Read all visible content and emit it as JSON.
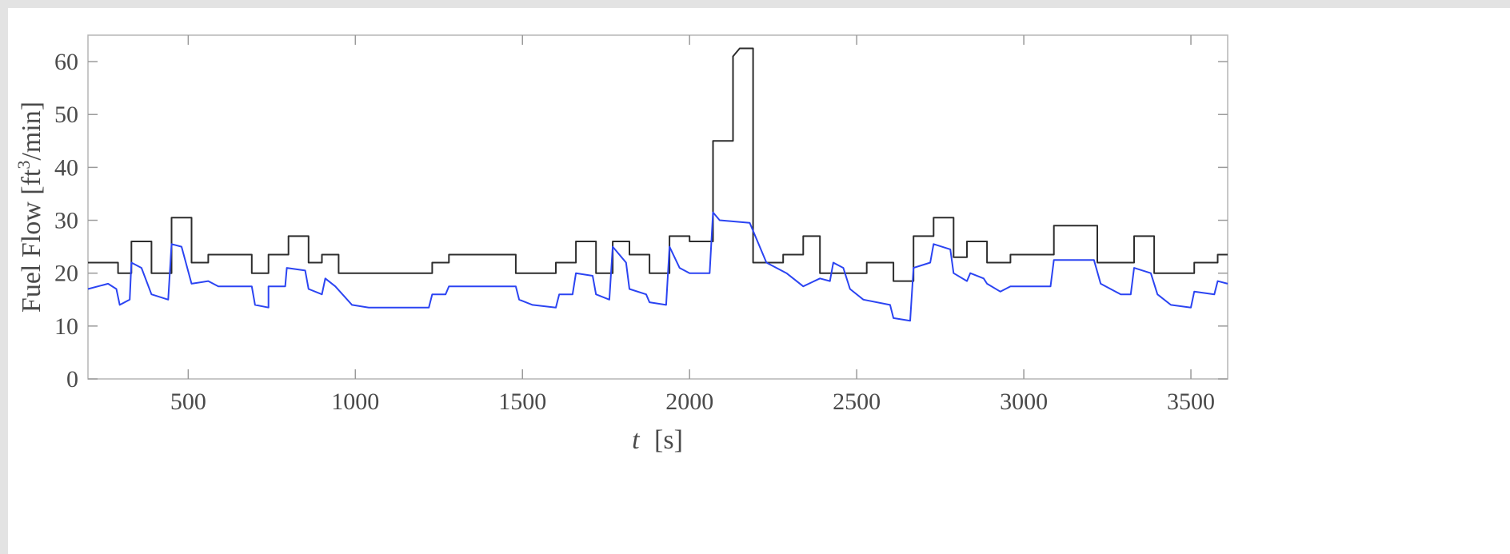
{
  "chart_data": {
    "type": "line",
    "xlabel_var": "t",
    "xlabel_unit": "[s]",
    "ylabel_main": "Fuel Flow [ft",
    "ylabel_sup": "3",
    "ylabel_tail": "/min]",
    "xlim": [
      200,
      3610
    ],
    "ylim": [
      0,
      65
    ],
    "xticks": [
      500,
      1000,
      1500,
      2000,
      2500,
      3000,
      3500
    ],
    "yticks": [
      0,
      10,
      20,
      30,
      40,
      50,
      60
    ],
    "grid": false,
    "legend": "none",
    "series": [
      {
        "color": "#2d2d2d",
        "points": [
          [
            200,
            22
          ],
          [
            290,
            22
          ],
          [
            290,
            20
          ],
          [
            330,
            20
          ],
          [
            330,
            26
          ],
          [
            390,
            26
          ],
          [
            390,
            20
          ],
          [
            450,
            20
          ],
          [
            450,
            30.5
          ],
          [
            510,
            30.5
          ],
          [
            510,
            22
          ],
          [
            560,
            22
          ],
          [
            560,
            23.5
          ],
          [
            690,
            23.5
          ],
          [
            690,
            20
          ],
          [
            740,
            20
          ],
          [
            740,
            23.5
          ],
          [
            800,
            23.5
          ],
          [
            800,
            27
          ],
          [
            860,
            27
          ],
          [
            860,
            22
          ],
          [
            900,
            22
          ],
          [
            900,
            23.5
          ],
          [
            950,
            23.5
          ],
          [
            950,
            20
          ],
          [
            1230,
            20
          ],
          [
            1230,
            22
          ],
          [
            1280,
            22
          ],
          [
            1280,
            23.5
          ],
          [
            1480,
            23.5
          ],
          [
            1480,
            20
          ],
          [
            1600,
            20
          ],
          [
            1600,
            22
          ],
          [
            1660,
            22
          ],
          [
            1660,
            26
          ],
          [
            1720,
            26
          ],
          [
            1720,
            20
          ],
          [
            1770,
            20
          ],
          [
            1770,
            26
          ],
          [
            1820,
            26
          ],
          [
            1820,
            23.5
          ],
          [
            1880,
            23.5
          ],
          [
            1880,
            20
          ],
          [
            1940,
            20
          ],
          [
            1940,
            27
          ],
          [
            2000,
            27
          ],
          [
            2000,
            26
          ],
          [
            2070,
            26
          ],
          [
            2070,
            45
          ],
          [
            2130,
            45
          ],
          [
            2130,
            61
          ],
          [
            2150,
            62.5
          ],
          [
            2190,
            62.5
          ],
          [
            2190,
            22
          ],
          [
            2280,
            22
          ],
          [
            2280,
            23.5
          ],
          [
            2340,
            23.5
          ],
          [
            2340,
            27
          ],
          [
            2390,
            27
          ],
          [
            2390,
            20
          ],
          [
            2530,
            20
          ],
          [
            2530,
            22
          ],
          [
            2610,
            22
          ],
          [
            2610,
            18.5
          ],
          [
            2670,
            18.5
          ],
          [
            2670,
            27
          ],
          [
            2730,
            27
          ],
          [
            2730,
            30.5
          ],
          [
            2790,
            30.5
          ],
          [
            2790,
            23
          ],
          [
            2830,
            23
          ],
          [
            2830,
            26
          ],
          [
            2890,
            26
          ],
          [
            2890,
            22
          ],
          [
            2960,
            22
          ],
          [
            2960,
            23.5
          ],
          [
            3090,
            23.5
          ],
          [
            3090,
            29
          ],
          [
            3220,
            29
          ],
          [
            3220,
            22
          ],
          [
            3330,
            22
          ],
          [
            3330,
            27
          ],
          [
            3390,
            27
          ],
          [
            3390,
            20
          ],
          [
            3510,
            20
          ],
          [
            3510,
            22
          ],
          [
            3580,
            22
          ],
          [
            3580,
            23.5
          ],
          [
            3610,
            23.5
          ]
        ]
      },
      {
        "color": "#2b44f2",
        "points": [
          [
            200,
            17
          ],
          [
            260,
            18
          ],
          [
            285,
            17
          ],
          [
            295,
            14
          ],
          [
            325,
            15
          ],
          [
            330,
            22
          ],
          [
            360,
            21
          ],
          [
            390,
            16
          ],
          [
            440,
            15
          ],
          [
            450,
            25.5
          ],
          [
            480,
            25
          ],
          [
            510,
            18
          ],
          [
            560,
            18.5
          ],
          [
            590,
            17.5
          ],
          [
            690,
            17.5
          ],
          [
            700,
            14
          ],
          [
            740,
            13.5
          ],
          [
            740,
            17.5
          ],
          [
            790,
            17.5
          ],
          [
            795,
            21
          ],
          [
            850,
            20.5
          ],
          [
            860,
            17
          ],
          [
            900,
            16
          ],
          [
            910,
            19
          ],
          [
            940,
            17.5
          ],
          [
            990,
            14
          ],
          [
            1040,
            13.5
          ],
          [
            1220,
            13.5
          ],
          [
            1230,
            16
          ],
          [
            1270,
            16
          ],
          [
            1280,
            17.5
          ],
          [
            1480,
            17.5
          ],
          [
            1490,
            15
          ],
          [
            1530,
            14
          ],
          [
            1600,
            13.5
          ],
          [
            1610,
            16
          ],
          [
            1650,
            16
          ],
          [
            1660,
            20
          ],
          [
            1710,
            19.5
          ],
          [
            1720,
            16
          ],
          [
            1760,
            15
          ],
          [
            1770,
            25
          ],
          [
            1810,
            22
          ],
          [
            1820,
            17
          ],
          [
            1870,
            16
          ],
          [
            1880,
            14.5
          ],
          [
            1930,
            14
          ],
          [
            1940,
            25
          ],
          [
            1970,
            21
          ],
          [
            2000,
            20
          ],
          [
            2060,
            20
          ],
          [
            2070,
            31.5
          ],
          [
            2090,
            30
          ],
          [
            2180,
            29.5
          ],
          [
            2190,
            28
          ],
          [
            2230,
            22
          ],
          [
            2290,
            20
          ],
          [
            2340,
            17.5
          ],
          [
            2390,
            19
          ],
          [
            2420,
            18.5
          ],
          [
            2430,
            22
          ],
          [
            2460,
            21
          ],
          [
            2480,
            17
          ],
          [
            2520,
            15
          ],
          [
            2600,
            14
          ],
          [
            2610,
            11.5
          ],
          [
            2660,
            11
          ],
          [
            2670,
            21
          ],
          [
            2720,
            22
          ],
          [
            2730,
            25.5
          ],
          [
            2780,
            24.5
          ],
          [
            2790,
            20
          ],
          [
            2830,
            18.5
          ],
          [
            2840,
            20
          ],
          [
            2880,
            19
          ],
          [
            2890,
            18
          ],
          [
            2930,
            16.5
          ],
          [
            2960,
            17.5
          ],
          [
            3080,
            17.5
          ],
          [
            3090,
            22.5
          ],
          [
            3210,
            22.5
          ],
          [
            3230,
            18
          ],
          [
            3290,
            16
          ],
          [
            3320,
            16
          ],
          [
            3330,
            21
          ],
          [
            3380,
            20
          ],
          [
            3400,
            16
          ],
          [
            3440,
            14
          ],
          [
            3500,
            13.5
          ],
          [
            3510,
            16.5
          ],
          [
            3570,
            16
          ],
          [
            3580,
            18.5
          ],
          [
            3610,
            18
          ]
        ]
      }
    ]
  }
}
